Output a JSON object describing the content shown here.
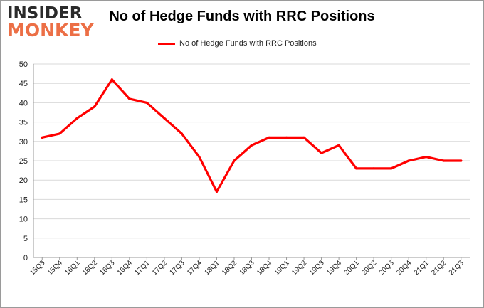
{
  "logo": {
    "top": "INSIDER",
    "bottom": "MONKEY"
  },
  "colors": {
    "line": "#ff0000",
    "grid": "#d9d9d9",
    "axis": "#9a9a9a",
    "logo_accent": "#ec6f46"
  },
  "chart_data": {
    "type": "line",
    "title": "No of Hedge Funds with RRC Positions",
    "xlabel": "",
    "ylabel": "",
    "ylim": [
      0,
      50
    ],
    "yticks": [
      0,
      5,
      10,
      15,
      20,
      25,
      30,
      35,
      40,
      45,
      50
    ],
    "grid": true,
    "legend_position": "top-center",
    "categories": [
      "15Q3",
      "15Q4",
      "16Q1",
      "16Q2",
      "16Q3",
      "16Q4",
      "17Q1",
      "17Q2",
      "17Q3",
      "17Q4",
      "18Q1",
      "18Q2",
      "18Q3",
      "18Q4",
      "19Q1",
      "19Q2",
      "19Q3",
      "19Q4",
      "20Q1",
      "20Q2",
      "20Q3",
      "20Q4",
      "21Q1",
      "21Q2",
      "21Q3"
    ],
    "series": [
      {
        "name": "No of Hedge Funds with RRC Positions",
        "color": "#ff0000",
        "values": [
          31,
          32,
          36,
          39,
          46,
          41,
          40,
          36,
          32,
          26,
          17,
          25,
          29,
          31,
          31,
          31,
          27,
          29,
          23,
          23,
          23,
          25,
          26,
          25,
          25
        ]
      }
    ]
  }
}
